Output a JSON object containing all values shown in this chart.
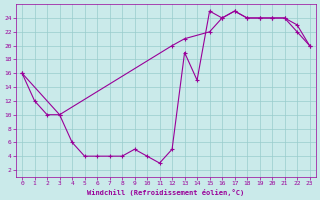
{
  "xlabel": "Windchill (Refroidissement éolien,°C)",
  "background_color": "#caeaea",
  "line_color": "#990099",
  "grid_color": "#99cccc",
  "line1_x": [
    0,
    1,
    2,
    3,
    4,
    5,
    6,
    7,
    8,
    9,
    10,
    11,
    12,
    13,
    14,
    15,
    16,
    17,
    18,
    19,
    20,
    21,
    22,
    23
  ],
  "line1_y": [
    16,
    12,
    10,
    10,
    6,
    4,
    4,
    4,
    4,
    5,
    4,
    3,
    5,
    19,
    15,
    25,
    24,
    25,
    24,
    24,
    24,
    24,
    22,
    20
  ],
  "line2_x": [
    0,
    3,
    12,
    13,
    15,
    16,
    17,
    18,
    19,
    20,
    21,
    22,
    23
  ],
  "line2_y": [
    16,
    10,
    20,
    21,
    22,
    24,
    25,
    24,
    24,
    24,
    24,
    23,
    20
  ],
  "xlim": [
    -0.5,
    23.5
  ],
  "ylim": [
    1,
    26
  ],
  "xticks": [
    0,
    1,
    2,
    3,
    4,
    5,
    6,
    7,
    8,
    9,
    10,
    11,
    12,
    13,
    14,
    15,
    16,
    17,
    18,
    19,
    20,
    21,
    22,
    23
  ],
  "yticks": [
    2,
    4,
    6,
    8,
    10,
    12,
    14,
    16,
    18,
    20,
    22,
    24
  ]
}
